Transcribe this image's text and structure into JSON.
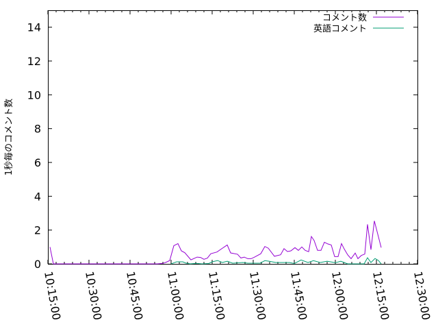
{
  "chart_data": {
    "type": "line",
    "title": "",
    "xlabel": "",
    "ylabel": "1秒毎のコメント数",
    "xlim": [
      "10:15:00",
      "12:30:00"
    ],
    "ylim": [
      0,
      15
    ],
    "x_ticks": [
      "10:15:00",
      "10:30:00",
      "10:45:00",
      "11:00:00",
      "11:15:00",
      "11:30:00",
      "11:45:00",
      "12:00:00",
      "12:15:00",
      "12:30:00"
    ],
    "y_ticks": [
      "0",
      "2",
      "4",
      "6",
      "8",
      "10",
      "12",
      "14"
    ],
    "grid": false,
    "legend_placement": "top-right",
    "series": [
      {
        "name": "コメント数",
        "color": "#9400d3",
        "points": [
          [
            "10:15:45",
            1.0
          ],
          [
            "10:17:00",
            0
          ],
          [
            "10:55:00",
            0
          ],
          [
            "10:57:00",
            0.03
          ],
          [
            "10:58:15",
            0.1
          ],
          [
            "10:59:30",
            0.2
          ],
          [
            "11:01:00",
            1.08
          ],
          [
            "11:02:30",
            1.2
          ],
          [
            "11:03:45",
            0.77
          ],
          [
            "11:05:00",
            0.66
          ],
          [
            "11:07:15",
            0.24
          ],
          [
            "11:09:30",
            0.4
          ],
          [
            "11:10:45",
            0.38
          ],
          [
            "11:12:00",
            0.27
          ],
          [
            "11:13:15",
            0.34
          ],
          [
            "11:14:30",
            0.6
          ],
          [
            "11:16:45",
            0.7
          ],
          [
            "11:18:45",
            0.93
          ],
          [
            "11:20:30",
            1.12
          ],
          [
            "11:21:45",
            0.65
          ],
          [
            "11:24:15",
            0.57
          ],
          [
            "11:25:30",
            0.35
          ],
          [
            "11:26:45",
            0.4
          ],
          [
            "11:28:00",
            0.31
          ],
          [
            "11:29:15",
            0.31
          ],
          [
            "11:30:30",
            0.4
          ],
          [
            "11:32:45",
            0.6
          ],
          [
            "11:34:15",
            1.03
          ],
          [
            "11:35:30",
            0.93
          ],
          [
            "11:37:45",
            0.45
          ],
          [
            "11:40:00",
            0.54
          ],
          [
            "11:41:15",
            0.9
          ],
          [
            "11:42:30",
            0.73
          ],
          [
            "11:43:45",
            0.77
          ],
          [
            "11:45:15",
            0.96
          ],
          [
            "11:46:30",
            0.8
          ],
          [
            "11:47:45",
            1.0
          ],
          [
            "11:49:00",
            0.8
          ],
          [
            "11:50:15",
            0.72
          ],
          [
            "11:51:15",
            1.62
          ],
          [
            "11:52:15",
            1.38
          ],
          [
            "11:53:30",
            0.8
          ],
          [
            "11:54:45",
            0.8
          ],
          [
            "11:56:00",
            1.28
          ],
          [
            "11:57:15",
            1.18
          ],
          [
            "11:58:30",
            1.12
          ],
          [
            "11:59:45",
            0.43
          ],
          [
            "12:01:00",
            0.43
          ],
          [
            "12:02:15",
            1.2
          ],
          [
            "12:03:15",
            0.88
          ],
          [
            "12:04:30",
            0.54
          ],
          [
            "12:05:45",
            0.31
          ],
          [
            "12:07:15",
            0.64
          ],
          [
            "12:08:15",
            0.31
          ],
          [
            "12:09:30",
            0.5
          ],
          [
            "12:10:45",
            0.58
          ],
          [
            "12:11:45",
            2.34
          ],
          [
            "12:13:00",
            0.84
          ],
          [
            "12:14:15",
            2.54
          ],
          [
            "12:16:45",
            0.96
          ]
        ]
      },
      {
        "name": "英語コメント",
        "color": "#009e73",
        "points": [
          [
            "11:00:00",
            0
          ],
          [
            "11:02:00",
            0.12
          ],
          [
            "11:04:15",
            0.12
          ],
          [
            "11:05:30",
            0.04
          ],
          [
            "11:07:00",
            0
          ],
          [
            "11:09:15",
            0.03
          ],
          [
            "11:11:15",
            0
          ],
          [
            "11:13:45",
            0.02
          ],
          [
            "11:15:00",
            0.12
          ],
          [
            "11:17:00",
            0.2
          ],
          [
            "11:18:45",
            0.08
          ],
          [
            "11:20:30",
            0.16
          ],
          [
            "11:22:30",
            0.04
          ],
          [
            "11:26:15",
            0.08
          ],
          [
            "11:28:00",
            0.04
          ],
          [
            "11:32:30",
            0.04
          ],
          [
            "11:34:15",
            0.19
          ],
          [
            "11:35:45",
            0.16
          ],
          [
            "11:38:15",
            0.08
          ],
          [
            "11:43:15",
            0.08
          ],
          [
            "11:45:00",
            0.02
          ],
          [
            "11:47:30",
            0.23
          ],
          [
            "11:50:00",
            0.08
          ],
          [
            "11:52:00",
            0.19
          ],
          [
            "11:54:30",
            0.08
          ],
          [
            "11:57:00",
            0.16
          ],
          [
            "12:00:00",
            0.07
          ],
          [
            "12:02:00",
            0.16
          ],
          [
            "12:04:30",
            0
          ],
          [
            "12:09:15",
            0
          ],
          [
            "12:10:30",
            0
          ],
          [
            "12:11:45",
            0.36
          ],
          [
            "12:13:00",
            0.08
          ],
          [
            "12:14:30",
            0.32
          ],
          [
            "12:15:45",
            0.2
          ],
          [
            "12:16:45",
            0
          ]
        ]
      }
    ]
  }
}
